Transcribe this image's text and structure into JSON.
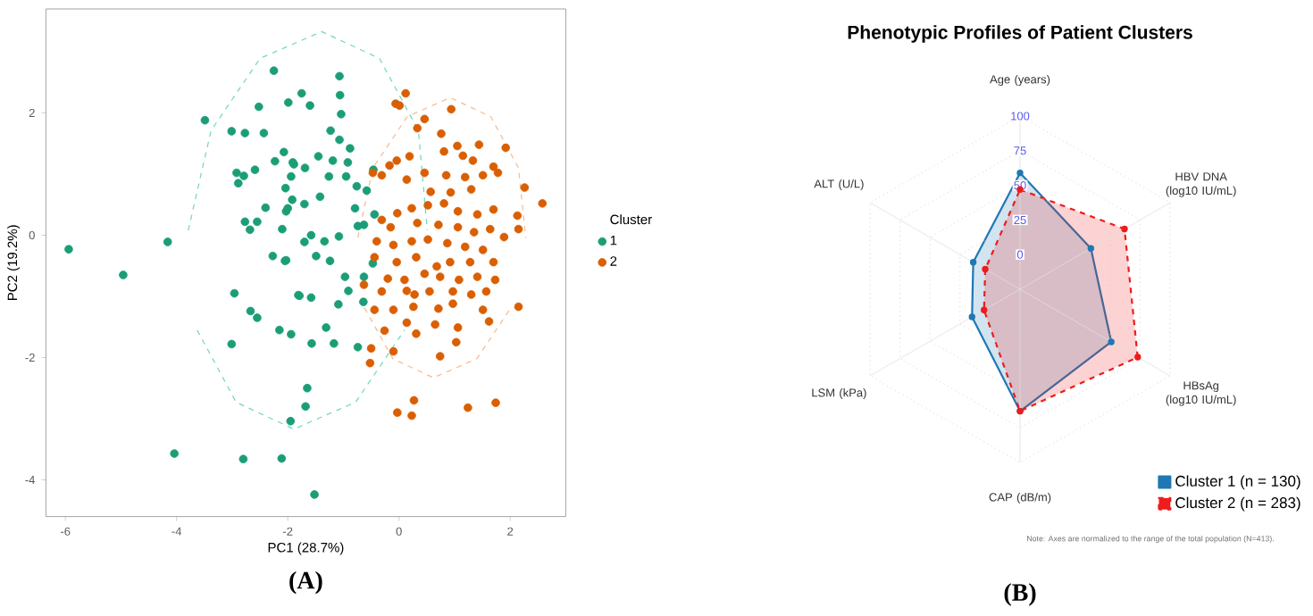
{
  "chart_data": [
    {
      "type": "scatter",
      "xlabel": "PC1 (28.7%)",
      "ylabel": "PC2 (19.2%)",
      "legend_title": "Cluster",
      "legend": "right",
      "marker": "circle",
      "xlim": [
        -6.35,
        3.0
      ],
      "ylim": [
        -4.6,
        3.7
      ],
      "xticks": [
        -6,
        -4,
        -2,
        0,
        2
      ],
      "yticks": [
        -4,
        -2,
        0,
        2
      ],
      "series": [
        {
          "name": "1",
          "color": "#1b9e77",
          "x": [
            -5.94,
            -4.96,
            -4.16,
            -3.49,
            -4.04,
            -2.8,
            -2.11,
            -2.25,
            -2.52,
            -1.99,
            -3.01,
            -2.77,
            -2.43,
            -2.07,
            -2.23,
            -1.89,
            -2.92,
            -2.79,
            -2.59,
            -2.89,
            -1.94,
            -2.04,
            -1.92,
            -2.4,
            -2.0,
            -2.77,
            -2.55,
            -2.68,
            -2.1,
            -2.27,
            -2.05,
            -2.96,
            -1.81,
            -2.67,
            -2.55,
            -2.15,
            -1.94,
            -3.01,
            -1.95,
            -1.07,
            -1.75,
            -1.06,
            -1.6,
            -1.04,
            -1.23,
            -1.07,
            -0.88,
            -1.91,
            -1.45,
            -1.19,
            -0.92,
            -1.69,
            -1.26,
            -0.95,
            -0.46,
            -0.76,
            -0.58,
            -1.42,
            -1.7,
            -0.79,
            -0.44,
            -2.03,
            -1.58,
            -1.34,
            -1.08,
            -0.74,
            -0.63,
            -1.7,
            -1.24,
            -1.49,
            -0.97,
            -0.63,
            -2.03,
            -0.47,
            -0.91,
            -1.79,
            -1.58,
            -1.09,
            -0.64,
            -1.31,
            -1.57,
            -1.17,
            -0.74,
            -1.65,
            -1.68,
            -1.52
          ],
          "values": [
            -0.23,
            -0.65,
            -0.11,
            1.88,
            -3.57,
            -3.66,
            -3.65,
            2.69,
            2.1,
            2.17,
            1.7,
            1.67,
            1.67,
            1.36,
            1.21,
            1.16,
            1.02,
            0.97,
            1.07,
            0.85,
            0.96,
            0.77,
            0.58,
            0.45,
            0.44,
            0.22,
            0.22,
            0.09,
            0.1,
            -0.34,
            -0.42,
            -0.95,
            -0.98,
            -1.24,
            -1.35,
            -1.55,
            -1.62,
            -1.78,
            -3.04,
            2.6,
            2.32,
            2.29,
            2.12,
            1.98,
            1.71,
            1.56,
            1.42,
            1.19,
            1.29,
            1.22,
            1.19,
            1.1,
            0.96,
            0.96,
            1.07,
            0.8,
            0.73,
            0.63,
            0.51,
            0.44,
            0.34,
            0.39,
            0.0,
            -0.1,
            -0.02,
            0.15,
            0.17,
            -0.11,
            -0.42,
            -0.34,
            -0.68,
            -0.68,
            -0.41,
            -0.46,
            -0.91,
            -0.99,
            -1.02,
            -1.13,
            -1.09,
            -1.51,
            -1.77,
            -1.77,
            -1.83,
            -2.5,
            -2.8,
            -4.24
          ]
        },
        {
          "name": "2",
          "color": "#d95f02",
          "x": [
            0.12,
            -0.06,
            0.01,
            0.94,
            0.46,
            0.33,
            0.76,
            1.05,
            1.44,
            1.92,
            -0.17,
            -0.04,
            0.19,
            0.81,
            1.15,
            1.33,
            1.7,
            0.46,
            0.85,
            1.19,
            1.51,
            1.78,
            -0.47,
            -0.31,
            2.26,
            2.58,
            0.14,
            0.57,
            0.93,
            1.3,
            0.23,
            -0.03,
            0.52,
            0.81,
            1.06,
            1.41,
            1.7,
            2.13,
            -0.31,
            -0.15,
            0.33,
            0.71,
            1.06,
            1.35,
            1.64,
            2.15,
            1.89,
            -0.4,
            -0.1,
            0.23,
            0.52,
            0.87,
            1.19,
            1.51,
            -0.44,
            -0.04,
            0.31,
            0.68,
            0.92,
            1.28,
            1.7,
            -0.2,
            0.1,
            0.46,
            0.74,
            1.08,
            1.41,
            1.73,
            -0.63,
            -0.31,
            0.14,
            0.28,
            0.55,
            0.97,
            1.3,
            1.57,
            -0.44,
            -0.1,
            0.26,
            0.71,
            0.97,
            1.51,
            2.15,
            0.14,
            0.65,
            1.06,
            1.62,
            -0.26,
            0.31,
            -0.5,
            -0.1,
            0.74,
            1.03,
            -0.52,
            0.27,
            -0.03,
            0.23,
            1.24,
            1.74
          ],
          "values": [
            2.32,
            2.15,
            2.12,
            2.06,
            1.9,
            1.75,
            1.66,
            1.46,
            1.48,
            1.43,
            1.14,
            1.22,
            1.29,
            1.37,
            1.3,
            1.22,
            1.12,
            1.02,
            0.98,
            0.95,
            0.98,
            1.02,
            1.02,
            0.98,
            0.78,
            0.52,
            0.91,
            0.71,
            0.7,
            0.75,
            0.44,
            0.36,
            0.49,
            0.52,
            0.39,
            0.34,
            0.42,
            0.32,
            0.25,
            0.13,
            0.2,
            0.17,
            0.13,
            0.05,
            0.1,
            0.1,
            -0.03,
            -0.1,
            -0.16,
            -0.1,
            -0.07,
            -0.13,
            -0.19,
            -0.24,
            -0.36,
            -0.44,
            -0.36,
            -0.51,
            -0.44,
            -0.44,
            -0.44,
            -0.71,
            -0.73,
            -0.63,
            -0.68,
            -0.73,
            -0.68,
            -0.73,
            -0.81,
            -0.92,
            -0.91,
            -0.97,
            -0.92,
            -0.92,
            -0.97,
            -0.92,
            -1.22,
            -1.22,
            -1.17,
            -1.2,
            -1.12,
            -1.22,
            -1.17,
            -1.43,
            -1.46,
            -1.51,
            -1.41,
            -1.56,
            -1.61,
            -1.85,
            -1.9,
            -1.98,
            -1.75,
            -2.09,
            -2.7,
            -2.9,
            -2.95,
            -2.82,
            -2.74
          ]
        },
        {
          "type": "line",
          "line_style": "dashed",
          "marker": "none",
          "color": "#6fd6bd",
          "x": [
            -3.79,
            -3.38,
            -2.5,
            -1.39,
            -0.35,
            0.35,
            0.51
          ],
          "values": [
            0.08,
            1.71,
            2.89,
            3.33,
            2.89,
            1.71,
            0.08
          ]
        },
        {
          "type": "line",
          "line_style": "dashed",
          "marker": "none",
          "color": "#6fd6bd",
          "x": [
            -3.63,
            -2.93,
            -1.89,
            -0.78,
            0.1
          ],
          "values": [
            -1.55,
            -2.73,
            -3.17,
            -2.73,
            -1.55
          ]
        },
        {
          "type": "line",
          "line_style": "dashed",
          "marker": "none",
          "color": "#f6b98e",
          "x": [
            -0.74,
            -0.47,
            0.15,
            0.92,
            1.65,
            2.15,
            2.28
          ],
          "values": [
            -0.04,
            1.1,
            1.94,
            2.25,
            1.94,
            1.1,
            -0.04
          ]
        },
        {
          "type": "line",
          "line_style": "dashed",
          "marker": "none",
          "color": "#f6b98e",
          "x": [
            -0.62,
            -0.11,
            0.62,
            1.4,
            2.01
          ],
          "values": [
            -1.19,
            -2.02,
            -2.33,
            -2.02,
            -1.19
          ]
        }
      ],
      "annotations": [
        "(A)"
      ]
    },
    {
      "type": "radar",
      "title": "Phenotypic Profiles of Patient Clusters",
      "categories": [
        "Age (years)",
        "HBV DNA (log10 IU/mL)",
        "HBsAg (log10 IU/mL)",
        "CAP (dB/m)",
        "LSM (kPa)",
        "ALT (U/L)"
      ],
      "ylim": [
        -25,
        100
      ],
      "yticks": [
        0,
        25,
        50,
        75,
        100
      ],
      "grid": true,
      "legend": "bottom right",
      "marker": "circle",
      "series": [
        {
          "name": "Cluster 1 (n = 130)",
          "color": "#1f78b4",
          "line_style": "solid",
          "values": [
            59,
            34,
            51,
            63,
            15,
            14
          ]
        },
        {
          "name": "Cluster 2 (n = 283)",
          "color": "#ee1c1c",
          "line_style": "dashed",
          "values": [
            47,
            62,
            73,
            63,
            5,
            4
          ]
        }
      ],
      "annotations": [
        "Note: Axes are normalized to the range of the total population (N=413).",
        "(B)"
      ]
    }
  ]
}
